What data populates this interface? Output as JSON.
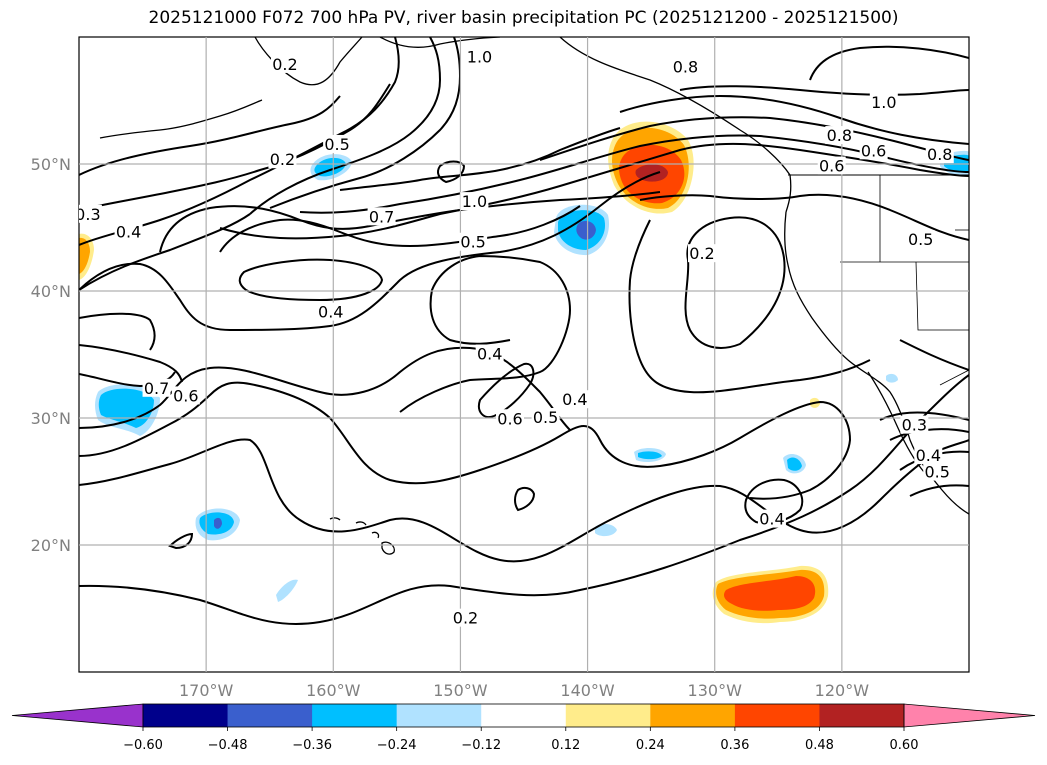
{
  "title": "2025121000 F072 700 hPa PV, river basin precipitation PC (2025121200 - 2025121500)",
  "chart_data": {
    "type": "contour-map",
    "map_extent": {
      "lon": [
        -180,
        -110
      ],
      "lat": [
        10,
        60
      ]
    },
    "x_ticks": [
      {
        "lon": -170,
        "label": "170°W"
      },
      {
        "lon": -160,
        "label": "160°W"
      },
      {
        "lon": -150,
        "label": "150°W"
      },
      {
        "lon": -140,
        "label": "140°W"
      },
      {
        "lon": -130,
        "label": "130°W"
      },
      {
        "lon": -120,
        "label": "120°W"
      }
    ],
    "y_ticks": [
      {
        "lat": 20,
        "label": "20°N"
      },
      {
        "lat": 30,
        "label": "30°N"
      },
      {
        "lat": 40,
        "label": "40°N"
      },
      {
        "lat": 50,
        "label": "50°N"
      }
    ],
    "grid": true,
    "contour_labels": [
      {
        "text": "0.2",
        "lon": -163.8,
        "lat": 57.8
      },
      {
        "text": "1.0",
        "lon": -148.5,
        "lat": 58.4
      },
      {
        "text": "0.8",
        "lon": -132.3,
        "lat": 57.6
      },
      {
        "text": "1.0",
        "lon": -116.7,
        "lat": 54.8
      },
      {
        "text": "0.8",
        "lon": -120.2,
        "lat": 52.2
      },
      {
        "text": "0.6",
        "lon": -117.5,
        "lat": 51.0
      },
      {
        "text": "0.8",
        "lon": -112.3,
        "lat": 50.7
      },
      {
        "text": "0.6",
        "lon": -120.8,
        "lat": 49.8
      },
      {
        "text": "0.5",
        "lon": -159.7,
        "lat": 51.5
      },
      {
        "text": "0.2",
        "lon": -164.0,
        "lat": 50.3
      },
      {
        "text": "0.3",
        "lon": -179.3,
        "lat": 46.0
      },
      {
        "text": "0.4",
        "lon": -176.1,
        "lat": 44.6
      },
      {
        "text": "1.0",
        "lon": -148.9,
        "lat": 47.0
      },
      {
        "text": "0.7",
        "lon": -156.2,
        "lat": 45.8
      },
      {
        "text": "0.5",
        "lon": -149.0,
        "lat": 43.8
      },
      {
        "text": "0.2",
        "lon": -131.0,
        "lat": 42.9
      },
      {
        "text": "0.5",
        "lon": -113.8,
        "lat": 44.0
      },
      {
        "text": "0.4",
        "lon": -160.2,
        "lat": 38.3
      },
      {
        "text": "0.4",
        "lon": -147.7,
        "lat": 35.0
      },
      {
        "text": "0.7",
        "lon": -173.9,
        "lat": 32.3
      },
      {
        "text": "0.6",
        "lon": -171.6,
        "lat": 31.7
      },
      {
        "text": "0.6",
        "lon": -146.1,
        "lat": 29.9
      },
      {
        "text": "0.5",
        "lon": -143.3,
        "lat": 30.0
      },
      {
        "text": "0.4",
        "lon": -141.0,
        "lat": 31.4
      },
      {
        "text": "0.4",
        "lon": -125.5,
        "lat": 22.0
      },
      {
        "text": "0.2",
        "lon": -149.6,
        "lat": 14.2
      },
      {
        "text": "0.3",
        "lon": -114.3,
        "lat": 29.4
      },
      {
        "text": "0.4",
        "lon": -113.2,
        "lat": 27.0
      },
      {
        "text": "0.5",
        "lon": -112.5,
        "lat": 25.7
      }
    ],
    "colorbar": {
      "levels": [
        -0.6,
        -0.48,
        -0.36,
        -0.24,
        -0.12,
        0.12,
        0.24,
        0.36,
        0.48,
        0.6
      ],
      "tick_labels": [
        "−0.60",
        "−0.48",
        "−0.36",
        "−0.24",
        "−0.12",
        "0.12",
        "0.24",
        "0.36",
        "0.48",
        "0.60"
      ],
      "colors": [
        "#9932cc",
        "#00008b",
        "#3a5fcd",
        "#00bfff",
        "#b0e2ff",
        "#ffffff",
        "#ffec8b",
        "#ffa500",
        "#ff4500",
        "#b22222",
        "#ff82ab"
      ],
      "extend": "both"
    },
    "precip_anomaly_areas": [
      {
        "lon": -135.0,
        "lat": 49.3,
        "max_level": 0.48
      },
      {
        "lon": -140.0,
        "lat": 44.5,
        "min_level": -0.48
      },
      {
        "lon": -160.0,
        "lat": 49.8,
        "min_level": -0.36
      },
      {
        "lon": -173.8,
        "lat": 31.0,
        "min_level": -0.36
      },
      {
        "lon": -168.7,
        "lat": 21.6,
        "min_level": -0.48
      },
      {
        "lon": -135.2,
        "lat": 27.0,
        "min_level": -0.36
      },
      {
        "lon": -124.7,
        "lat": 26.5,
        "min_level": -0.36
      },
      {
        "lon": -139.4,
        "lat": 21.0,
        "min_level": -0.24
      },
      {
        "lon": -164.3,
        "lat": 16.5,
        "min_level": -0.24
      },
      {
        "lon": -125.3,
        "lat": 15.9,
        "max_level": 0.36
      },
      {
        "lon": -179.7,
        "lat": 42.5,
        "max_level": 0.24
      },
      {
        "lon": -113.5,
        "lat": 50.0,
        "min_level": -0.36
      },
      {
        "lon": -122.2,
        "lat": 30.0,
        "max_level": 0.24
      }
    ]
  }
}
